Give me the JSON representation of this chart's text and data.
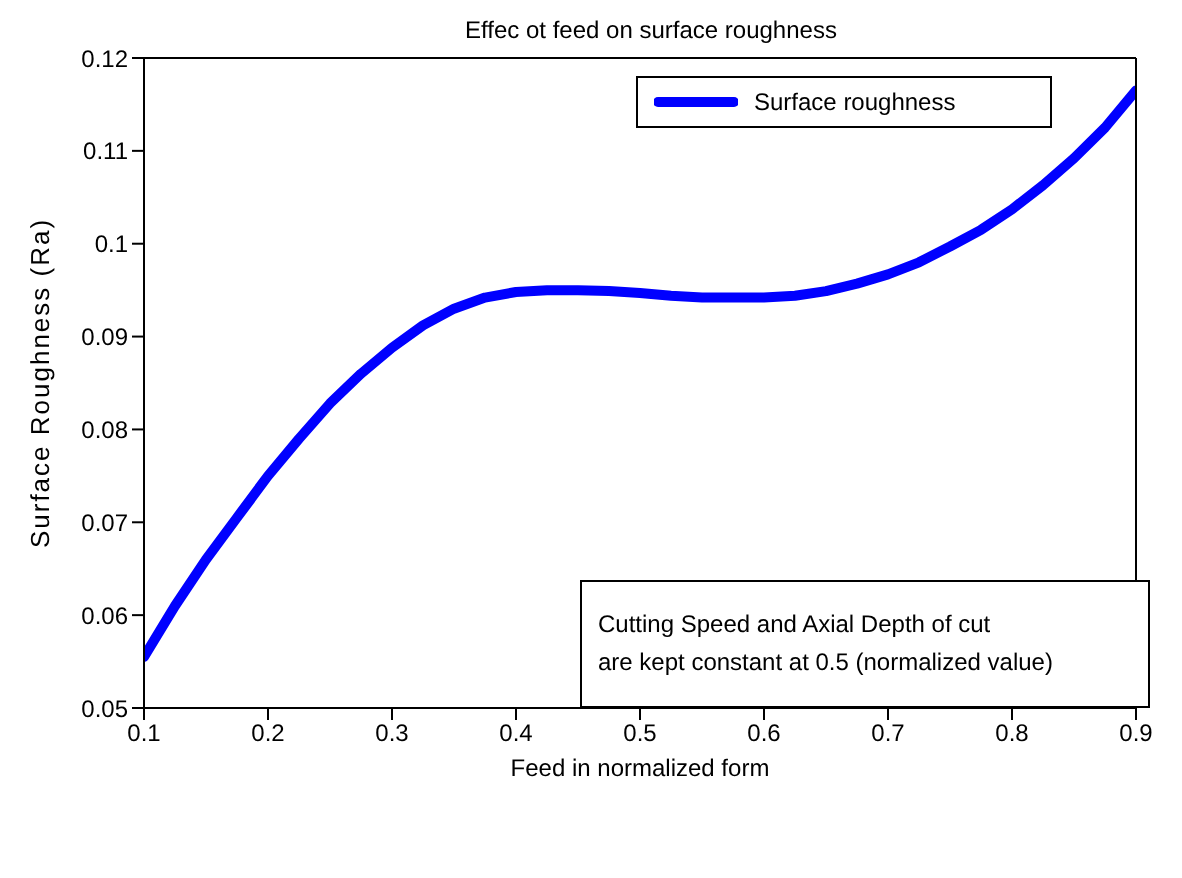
{
  "chart_data": {
    "type": "line",
    "title": "Effec ot feed on surface roughness",
    "xlabel": "Feed in normalized form",
    "ylabel": "Surface Roughness (Ra)",
    "x": [
      0.1,
      0.125,
      0.15,
      0.175,
      0.2,
      0.225,
      0.25,
      0.275,
      0.3,
      0.325,
      0.35,
      0.375,
      0.4,
      0.425,
      0.45,
      0.475,
      0.5,
      0.525,
      0.55,
      0.575,
      0.6,
      0.625,
      0.65,
      0.675,
      0.7,
      0.725,
      0.75,
      0.775,
      0.8,
      0.825,
      0.85,
      0.875,
      0.9
    ],
    "series": [
      {
        "name": "Surface roughness",
        "color": "#0000ff",
        "values": [
          0.0555,
          0.061,
          0.066,
          0.0705,
          0.075,
          0.079,
          0.0828,
          0.086,
          0.0888,
          0.0912,
          0.093,
          0.0942,
          0.0948,
          0.095,
          0.095,
          0.0949,
          0.0947,
          0.0944,
          0.0942,
          0.0942,
          0.0942,
          0.0944,
          0.0949,
          0.0957,
          0.0967,
          0.098,
          0.0997,
          0.1015,
          0.1037,
          0.1063,
          0.1092,
          0.1125,
          0.1165
        ]
      }
    ],
    "xlim": [
      0.1,
      0.9
    ],
    "xticks": [
      0.1,
      0.2,
      0.3,
      0.4,
      0.5,
      0.6,
      0.7,
      0.8,
      0.9
    ],
    "ylim": [
      0.05,
      0.12
    ],
    "yticks": [
      0.05,
      0.06,
      0.07,
      0.08,
      0.09,
      0.1,
      0.11,
      0.12
    ],
    "grid": false,
    "legend": "top right",
    "marker": "none",
    "line_style": "solid",
    "annotations": [
      "Cutting Speed and Axial Depth of cut\nare kept constant at 0.5 (normalized value)"
    ]
  }
}
